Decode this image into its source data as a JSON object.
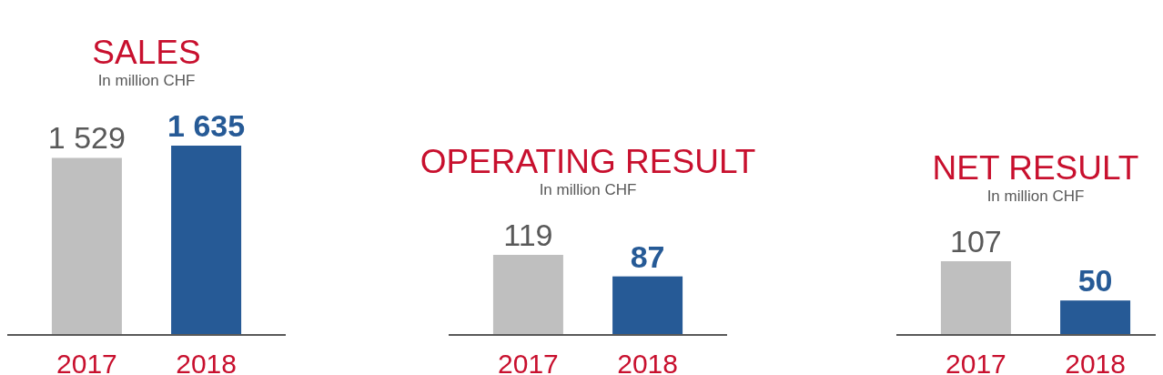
{
  "chart_data": [
    {
      "type": "bar",
      "title": "SALES",
      "subtitle": "In million CHF",
      "categories": [
        "2017",
        "2018"
      ],
      "values": [
        1529,
        1635
      ],
      "colors": [
        "#bfbfbf",
        "#265a96"
      ],
      "value_labels": [
        "1 529",
        "1 635"
      ]
    },
    {
      "type": "bar",
      "title": "OPERATING RESULT",
      "subtitle": "In million CHF",
      "categories": [
        "2017",
        "2018"
      ],
      "values": [
        119,
        87
      ],
      "colors": [
        "#bfbfbf",
        "#265a96"
      ],
      "data_labels": true
    },
    {
      "type": "bar",
      "title": "NET RESULT",
      "subtitle": "In million CHF",
      "categories": [
        "2017",
        "2018"
      ],
      "values": [
        107,
        50
      ],
      "colors": [
        "#bfbfbf",
        "#265a96"
      ],
      "data_labels": true
    }
  ]
}
